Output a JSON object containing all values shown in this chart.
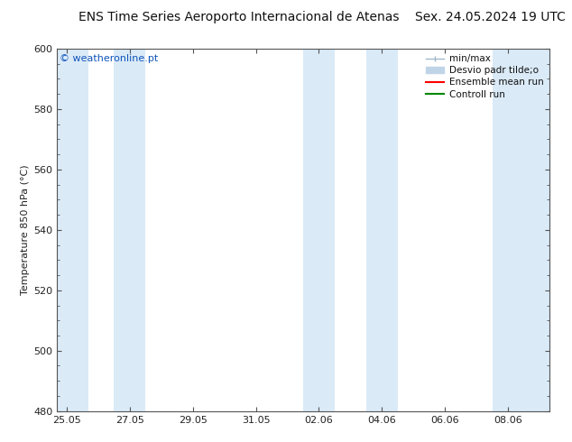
{
  "title_left": "ENS Time Series Aeroporto Internacional de Atenas",
  "title_right": "Sex. 24.05.2024 19 UTC",
  "ylabel": "Temperature 850 hPa (°C)",
  "watermark": "© weatheronline.pt",
  "ylim": [
    480,
    600
  ],
  "yticks": [
    480,
    500,
    520,
    540,
    560,
    580,
    600
  ],
  "xtick_labels": [
    "25.05",
    "27.05",
    "29.05",
    "31.05",
    "02.06",
    "04.06",
    "06.06",
    "08.06"
  ],
  "xtick_positions": [
    0,
    2,
    4,
    6,
    8,
    10,
    12,
    14
  ],
  "xmin": -0.3,
  "xmax": 15.3,
  "shaded_bands": [
    {
      "xmin": -0.3,
      "xmax": 0.7,
      "color": "#daeaf7"
    },
    {
      "xmin": 1.5,
      "xmax": 2.5,
      "color": "#daeaf7"
    },
    {
      "xmin": 7.5,
      "xmax": 8.5,
      "color": "#daeaf7"
    },
    {
      "xmin": 9.5,
      "xmax": 10.5,
      "color": "#daeaf7"
    },
    {
      "xmin": 13.5,
      "xmax": 14.5,
      "color": "#daeaf7"
    },
    {
      "xmin": 14.5,
      "xmax": 15.3,
      "color": "#daeaf7"
    }
  ],
  "legend_label_minmax": "min/max",
  "legend_label_desvio": "Desvio padr tilde;o",
  "legend_label_ensemble": "Ensemble mean run",
  "legend_label_control": "Controll run",
  "color_minmax": "#a0b8cc",
  "color_desvio": "#c0d4e8",
  "color_ensemble": "#ff0000",
  "color_control": "#008800",
  "bg_color": "#ffffff",
  "plot_bg_color": "#ffffff",
  "spine_color": "#555555",
  "tick_color": "#555555",
  "title_fontsize": 10,
  "label_fontsize": 8,
  "tick_fontsize": 8,
  "watermark_color": "#1155bb",
  "watermark_fontsize": 8,
  "legend_fontsize": 7.5
}
